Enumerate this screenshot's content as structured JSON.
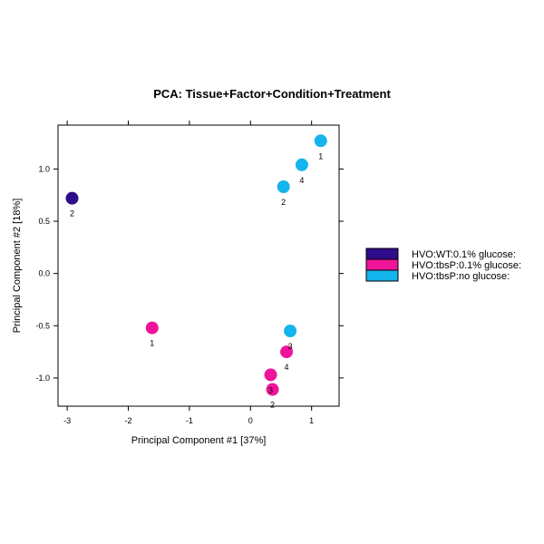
{
  "chart_data": {
    "type": "scatter",
    "title": "PCA: Tissue+Factor+Condition+Treatment",
    "xlabel": "Principal Component #1 [37%]",
    "ylabel": "Principal Component #2 [18%]",
    "xlim": [
      -3.15,
      1.45
    ],
    "ylim": [
      -1.27,
      1.42
    ],
    "xticks": [
      -3,
      -2,
      -1,
      0,
      1
    ],
    "yticks": [
      -1.0,
      -0.5,
      0.0,
      0.5,
      1.0
    ],
    "xtick_labels": [
      "-3",
      "-2",
      "-1",
      "0",
      "1"
    ],
    "ytick_labels": [
      "-1.0",
      "-0.5",
      "0.0",
      "0.5",
      "1.0"
    ],
    "grid": false,
    "legend_position": "right",
    "series": [
      {
        "name": "HVO:WT:0.1% glucose:",
        "color": "#2E0C8A",
        "points": [
          {
            "x": -2.92,
            "y": 0.72,
            "label": "2"
          }
        ]
      },
      {
        "name": "HVO:tbsP:0.1% glucose:",
        "color": "#F0149A",
        "points": [
          {
            "x": -1.61,
            "y": -0.52,
            "label": "1"
          },
          {
            "x": 0.59,
            "y": -0.75,
            "label": "4"
          },
          {
            "x": 0.33,
            "y": -0.97,
            "label": "3"
          },
          {
            "x": 0.36,
            "y": -1.11,
            "label": "2"
          }
        ]
      },
      {
        "name": "HVO:tbsP:no glucose:",
        "color": "#14B4EC",
        "points": [
          {
            "x": 1.15,
            "y": 1.27,
            "label": "1"
          },
          {
            "x": 0.84,
            "y": 1.04,
            "label": "4"
          },
          {
            "x": 0.54,
            "y": 0.83,
            "label": "2"
          },
          {
            "x": 0.65,
            "y": -0.55,
            "label": "3"
          }
        ]
      }
    ]
  }
}
